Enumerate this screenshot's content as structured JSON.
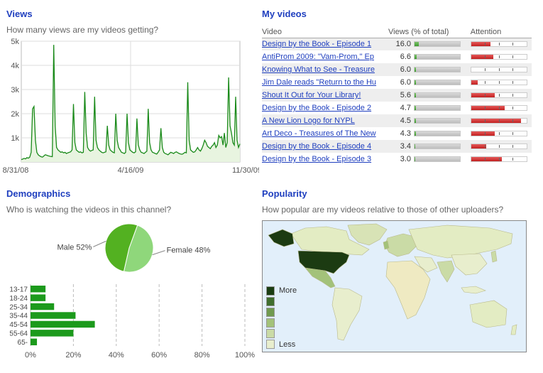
{
  "views": {
    "title": "Views",
    "subtitle": "How many views are my videos getting?"
  },
  "my_videos": {
    "title": "My videos",
    "columns": [
      "Video",
      "Views (% of total)",
      "Attention"
    ],
    "rows": [
      {
        "title": "Design by the Book - Episode 1",
        "views": "16.0",
        "views_pct": 0.16,
        "attention": 0.35
      },
      {
        "title": "AntiProm 2009: \"Vam-Prom,\" Ep",
        "views": "6.6",
        "views_pct": 0.066,
        "attention": 0.4
      },
      {
        "title": "Knowing What to See - Treasure",
        "views": "6.0",
        "views_pct": 0.06,
        "attention": 0.0
      },
      {
        "title": "Jim Dale reads \"Return to the Hu",
        "views": "6.0",
        "views_pct": 0.06,
        "attention": 0.12
      },
      {
        "title": "Shout It Out for Your Library!",
        "views": "5.6",
        "views_pct": 0.056,
        "attention": 0.42
      },
      {
        "title": "Design by the Book - Episode 2",
        "views": "4.7",
        "views_pct": 0.047,
        "attention": 0.6
      },
      {
        "title": "A New Lion Logo for NYPL",
        "views": "4.5",
        "views_pct": 0.045,
        "attention": 0.9
      },
      {
        "title": "Art Deco - Treasures of The New",
        "views": "4.3",
        "views_pct": 0.043,
        "attention": 0.42
      },
      {
        "title": "Design by the Book - Episode 4",
        "views": "3.4",
        "views_pct": 0.034,
        "attention": 0.27
      },
      {
        "title": "Design by the Book - Episode 3",
        "views": "3.0",
        "views_pct": 0.03,
        "attention": 0.55
      }
    ]
  },
  "demographics": {
    "title": "Demographics",
    "subtitle": "Who is watching the videos in this channel?"
  },
  "popularity": {
    "title": "Popularity",
    "subtitle": "How popular are my videos relative to those of other uploaders?",
    "legend_more": "More",
    "legend_less": "Less",
    "legend_colors": [
      "#1a3d12",
      "#3f6e2e",
      "#6f9a4f",
      "#a3c27a",
      "#cadba6",
      "#e8eecd"
    ]
  },
  "chart_data": [
    {
      "type": "line",
      "x_tick_labels": [
        "8/31/08",
        "4/16/09",
        "11/30/09"
      ],
      "y_tick_labels": [
        "1k",
        "2k",
        "3k",
        "4k",
        "5k"
      ],
      "ylim": [
        0,
        5000
      ],
      "grid": true,
      "color": "#1a8a1a",
      "values": [
        100,
        120,
        150,
        130,
        180,
        160,
        200,
        400,
        2200,
        2300,
        900,
        400,
        300,
        250,
        220,
        200,
        250,
        300,
        280,
        260,
        240,
        230,
        220,
        4850,
        1500,
        600,
        500,
        450,
        400,
        420,
        380,
        400,
        350,
        380,
        400,
        420,
        500,
        2400,
        800,
        500,
        450,
        400,
        420,
        380,
        400,
        2900,
        1200,
        600,
        500,
        450,
        480,
        500,
        2700,
        900,
        600,
        500,
        450,
        400,
        380,
        400,
        420,
        1500,
        700,
        500,
        450,
        400,
        380,
        2000,
        900,
        600,
        500,
        400,
        380,
        350,
        400,
        2000,
        800,
        500,
        450,
        400,
        380,
        420,
        1800,
        700,
        500,
        400,
        380,
        350,
        400,
        450,
        2200,
        800,
        500,
        400,
        380,
        350,
        330,
        400,
        500,
        1400,
        600,
        400,
        350,
        330,
        300,
        350,
        400,
        380,
        350,
        400,
        420,
        380,
        350,
        330,
        320,
        350,
        400,
        380,
        3300,
        900,
        500,
        450,
        400,
        420,
        500,
        600,
        500,
        450,
        550,
        700,
        900,
        800,
        650,
        600,
        550,
        650,
        700,
        800,
        600,
        700,
        1100,
        1000,
        1050,
        700,
        1200,
        600,
        800,
        3500,
        1500,
        1200,
        800,
        700,
        2700,
        900,
        600,
        750
      ]
    },
    {
      "type": "pie",
      "categories": [
        "Female",
        "Male"
      ],
      "values": [
        48,
        52
      ],
      "labels": [
        "Female 48%",
        "Male 52%"
      ],
      "colors": [
        "#8fd77b",
        "#53b121"
      ]
    },
    {
      "type": "bar",
      "orientation": "horizontal",
      "categories": [
        "13-17",
        "18-24",
        "25-34",
        "35-44",
        "45-54",
        "55-64",
        "65-"
      ],
      "values": [
        7,
        7,
        11,
        21,
        30,
        20,
        3
      ],
      "x_tick_labels": [
        "0%",
        "20%",
        "40%",
        "60%",
        "80%",
        "100%"
      ],
      "xlim": [
        0,
        100
      ],
      "color": "#1c9a1c"
    }
  ]
}
